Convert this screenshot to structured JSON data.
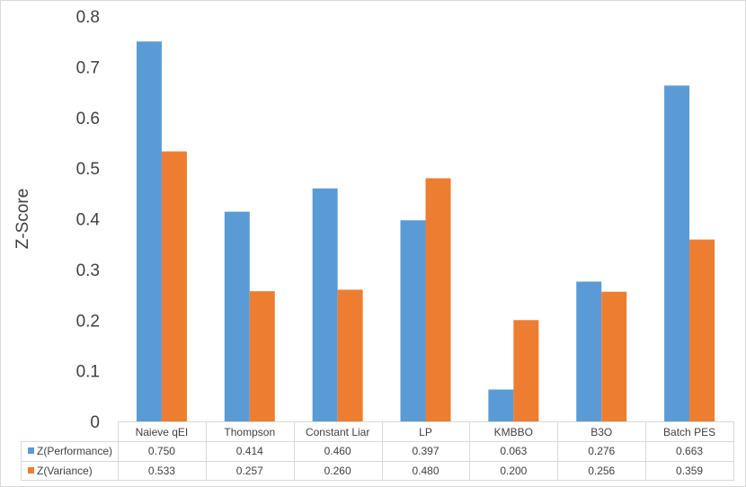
{
  "chart_data": {
    "type": "bar",
    "title": "",
    "xlabel": "",
    "ylabel": "Z-Score",
    "ylim": [
      0,
      0.8
    ],
    "yticks": [
      "0",
      "0.1",
      "0.2",
      "0.3",
      "0.4",
      "0.5",
      "0.6",
      "0.7",
      "0.8"
    ],
    "grid": false,
    "legend": "data-table-left",
    "categories": [
      "Naieve qEI",
      "Thompson",
      "Constant Liar",
      "LP",
      "KMBBO",
      "B3O",
      "Batch PES"
    ],
    "series": [
      {
        "name": "Z(Performance)",
        "color": "#5b9bd5",
        "values": [
          0.75,
          0.414,
          0.46,
          0.397,
          0.063,
          0.276,
          0.663
        ],
        "labels": [
          "0.750",
          "0.414",
          "0.460",
          "0.397",
          "0.063",
          "0.276",
          "0.663"
        ]
      },
      {
        "name": "Z(Variance)",
        "color": "#ed7d31",
        "values": [
          0.533,
          0.257,
          0.26,
          0.48,
          0.2,
          0.256,
          0.359
        ],
        "labels": [
          "0.533",
          "0.257",
          "0.260",
          "0.480",
          "0.200",
          "0.256",
          "0.359"
        ]
      }
    ]
  }
}
